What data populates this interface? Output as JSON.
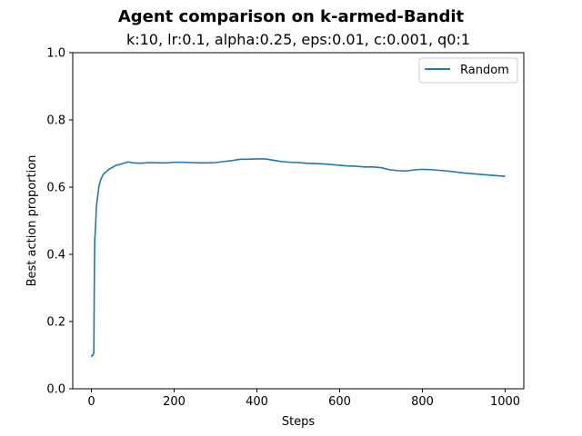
{
  "chart_data": {
    "type": "line",
    "title": "Agent comparison on k-armed-Bandit",
    "subtitle": "k:10, lr:0.1, alpha:0.25, eps:0.01, c:0.001, q0:1",
    "xlabel": "Steps",
    "ylabel": "Best action proportion",
    "xlim": [
      -45,
      1045
    ],
    "ylim": [
      0,
      1
    ],
    "xticks": [
      0,
      200,
      400,
      600,
      800,
      1000
    ],
    "yticks": [
      0.0,
      0.2,
      0.4,
      0.6,
      0.8,
      1.0
    ],
    "xtick_labels": [
      "0",
      "200",
      "400",
      "600",
      "800",
      "1000"
    ],
    "ytick_labels": [
      "0.0",
      "0.2",
      "0.4",
      "0.6",
      "0.8",
      "1.0"
    ],
    "grid": false,
    "legend": {
      "position": "upper right",
      "entries": [
        "Random"
      ]
    },
    "series": [
      {
        "name": "Random",
        "color": "#1f77b4",
        "x": [
          0,
          2,
          4,
          6,
          7,
          8,
          10,
          12,
          15,
          18,
          22,
          26,
          30,
          35,
          40,
          45,
          50,
          55,
          60,
          70,
          80,
          90,
          100,
          120,
          140,
          160,
          180,
          200,
          220,
          240,
          260,
          280,
          300,
          320,
          340,
          360,
          380,
          400,
          420,
          440,
          460,
          480,
          500,
          520,
          540,
          560,
          580,
          600,
          620,
          640,
          660,
          680,
          700,
          720,
          740,
          760,
          780,
          800,
          820,
          840,
          860,
          880,
          900,
          920,
          940,
          960,
          980,
          1000
        ],
        "y": [
          0.095,
          0.1,
          0.1,
          0.11,
          0.3,
          0.44,
          0.48,
          0.54,
          0.57,
          0.6,
          0.62,
          0.632,
          0.64,
          0.645,
          0.65,
          0.655,
          0.658,
          0.662,
          0.665,
          0.668,
          0.672,
          0.675,
          0.672,
          0.671,
          0.673,
          0.672,
          0.672,
          0.674,
          0.674,
          0.673,
          0.672,
          0.672,
          0.673,
          0.676,
          0.679,
          0.683,
          0.683,
          0.684,
          0.684,
          0.68,
          0.676,
          0.674,
          0.673,
          0.671,
          0.67,
          0.669,
          0.667,
          0.665,
          0.663,
          0.662,
          0.66,
          0.66,
          0.658,
          0.652,
          0.649,
          0.648,
          0.651,
          0.653,
          0.652,
          0.65,
          0.648,
          0.645,
          0.642,
          0.64,
          0.638,
          0.636,
          0.634,
          0.632
        ]
      }
    ]
  }
}
